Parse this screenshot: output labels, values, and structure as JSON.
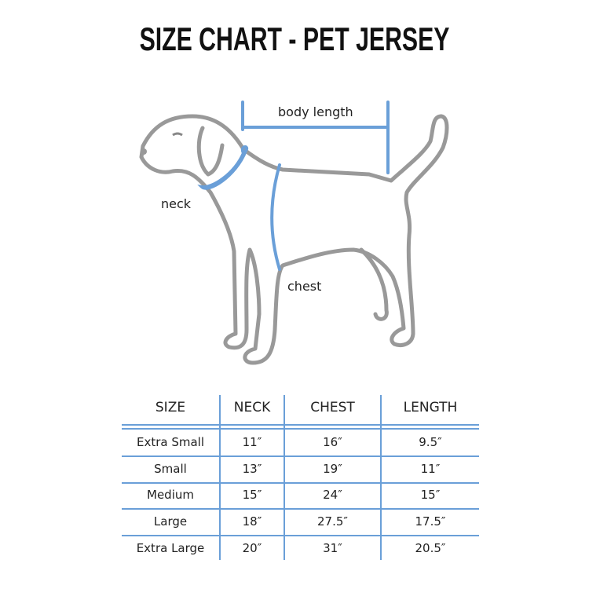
{
  "title": "SIZE CHART - PET JERSEY",
  "diagram": {
    "labels": {
      "body_length": "body length",
      "neck": "neck",
      "chest": "chest"
    },
    "colors": {
      "outline": "#999999",
      "measure": "#6a9fd8"
    }
  },
  "table": {
    "headers": [
      "SIZE",
      "NECK",
      "CHEST",
      "LENGTH"
    ],
    "rows": [
      [
        "Extra Small",
        "11″",
        "16″",
        "9.5″"
      ],
      [
        "Small",
        "13″",
        "19″",
        "11″"
      ],
      [
        "Medium",
        "15″",
        "24″",
        "15″"
      ],
      [
        "Large",
        "18″",
        "27.5″",
        "17.5″"
      ],
      [
        "Extra Large",
        "20″",
        "31″",
        "20.5″"
      ]
    ]
  }
}
